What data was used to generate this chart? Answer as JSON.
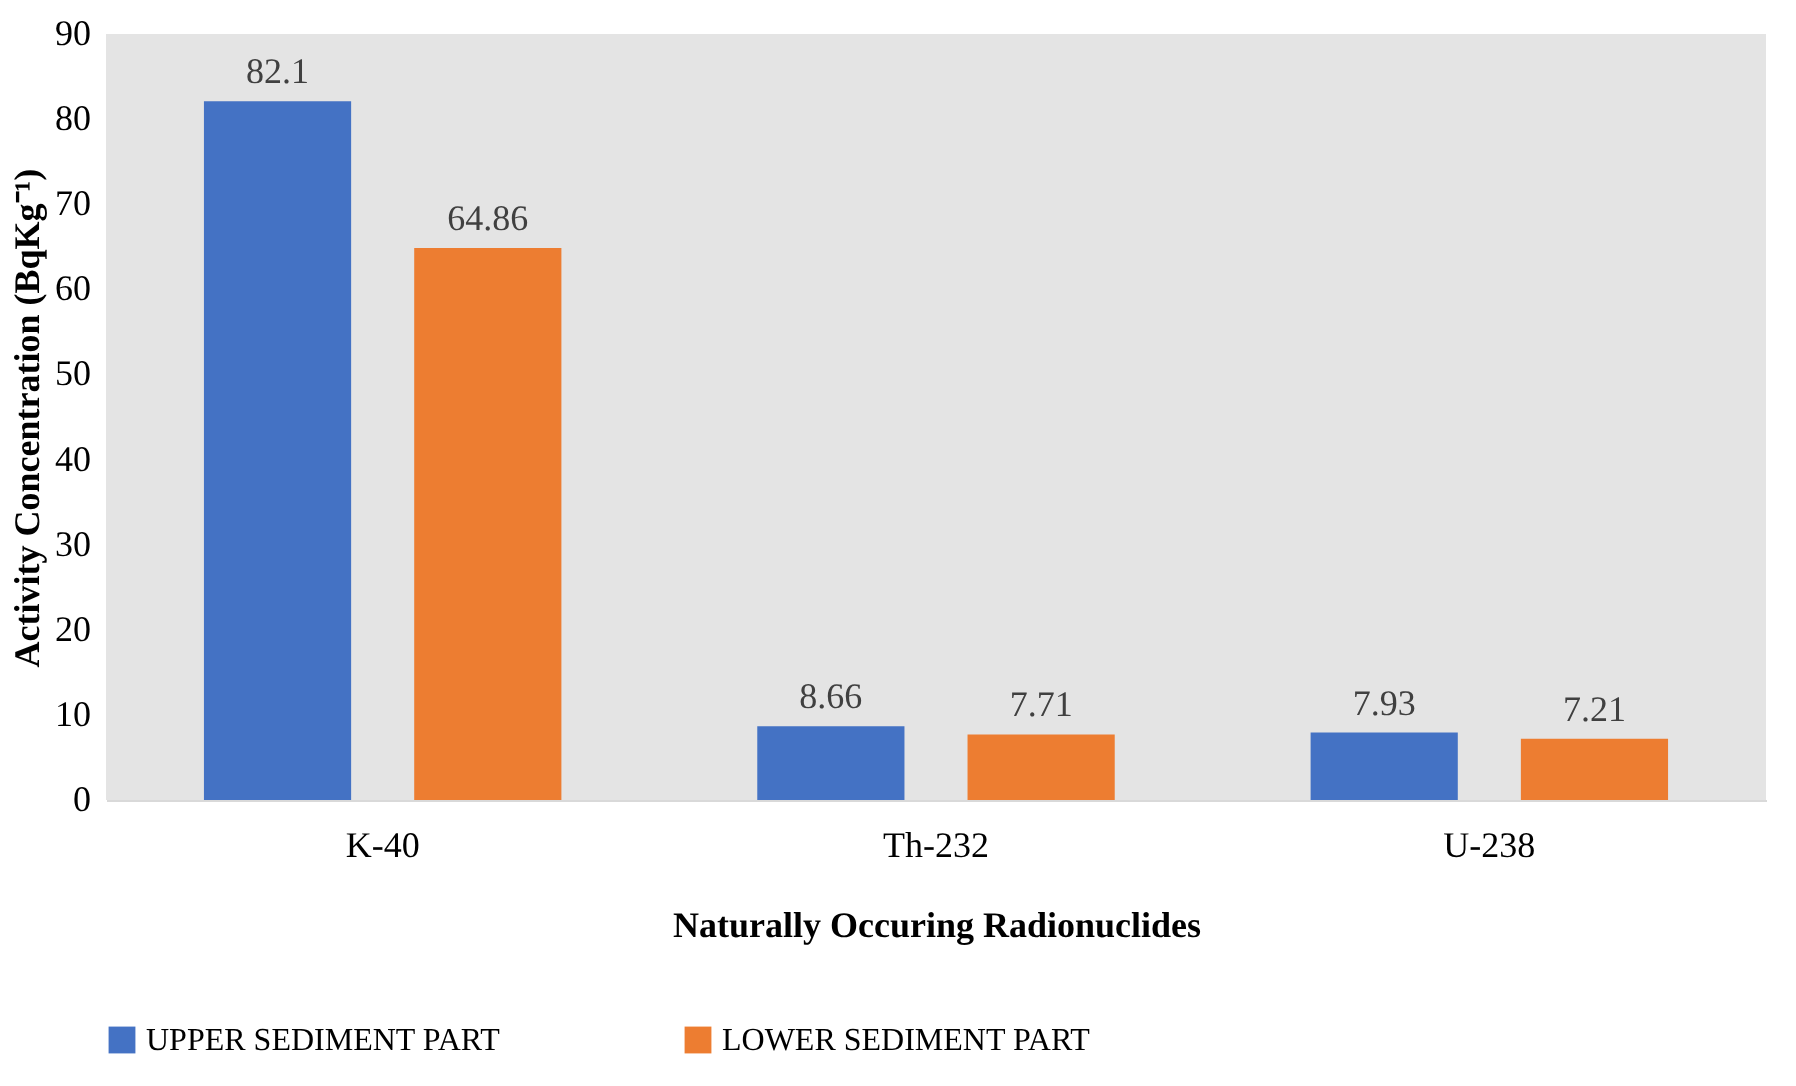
{
  "chart_data": {
    "type": "bar",
    "xlabel": "Naturally Occuring Radionuclides",
    "ylabel": "Activity Concentration (BqKg⁻¹)",
    "categories": [
      "K-40",
      "Th-232",
      "U-238"
    ],
    "series": [
      {
        "name": "UPPER SEDIMENT PART",
        "color": "#4472c4",
        "values": [
          82.1,
          8.66,
          7.93
        ]
      },
      {
        "name": "LOWER SEDIMENT PART",
        "color": "#ed7d31",
        "values": [
          64.86,
          7.71,
          7.21
        ]
      }
    ],
    "ylim": [
      0,
      90
    ],
    "yticks": [
      0,
      10,
      20,
      30,
      40,
      50,
      60,
      70,
      80,
      90
    ],
    "grid": false,
    "legend": "bottom",
    "data_labels": true
  }
}
